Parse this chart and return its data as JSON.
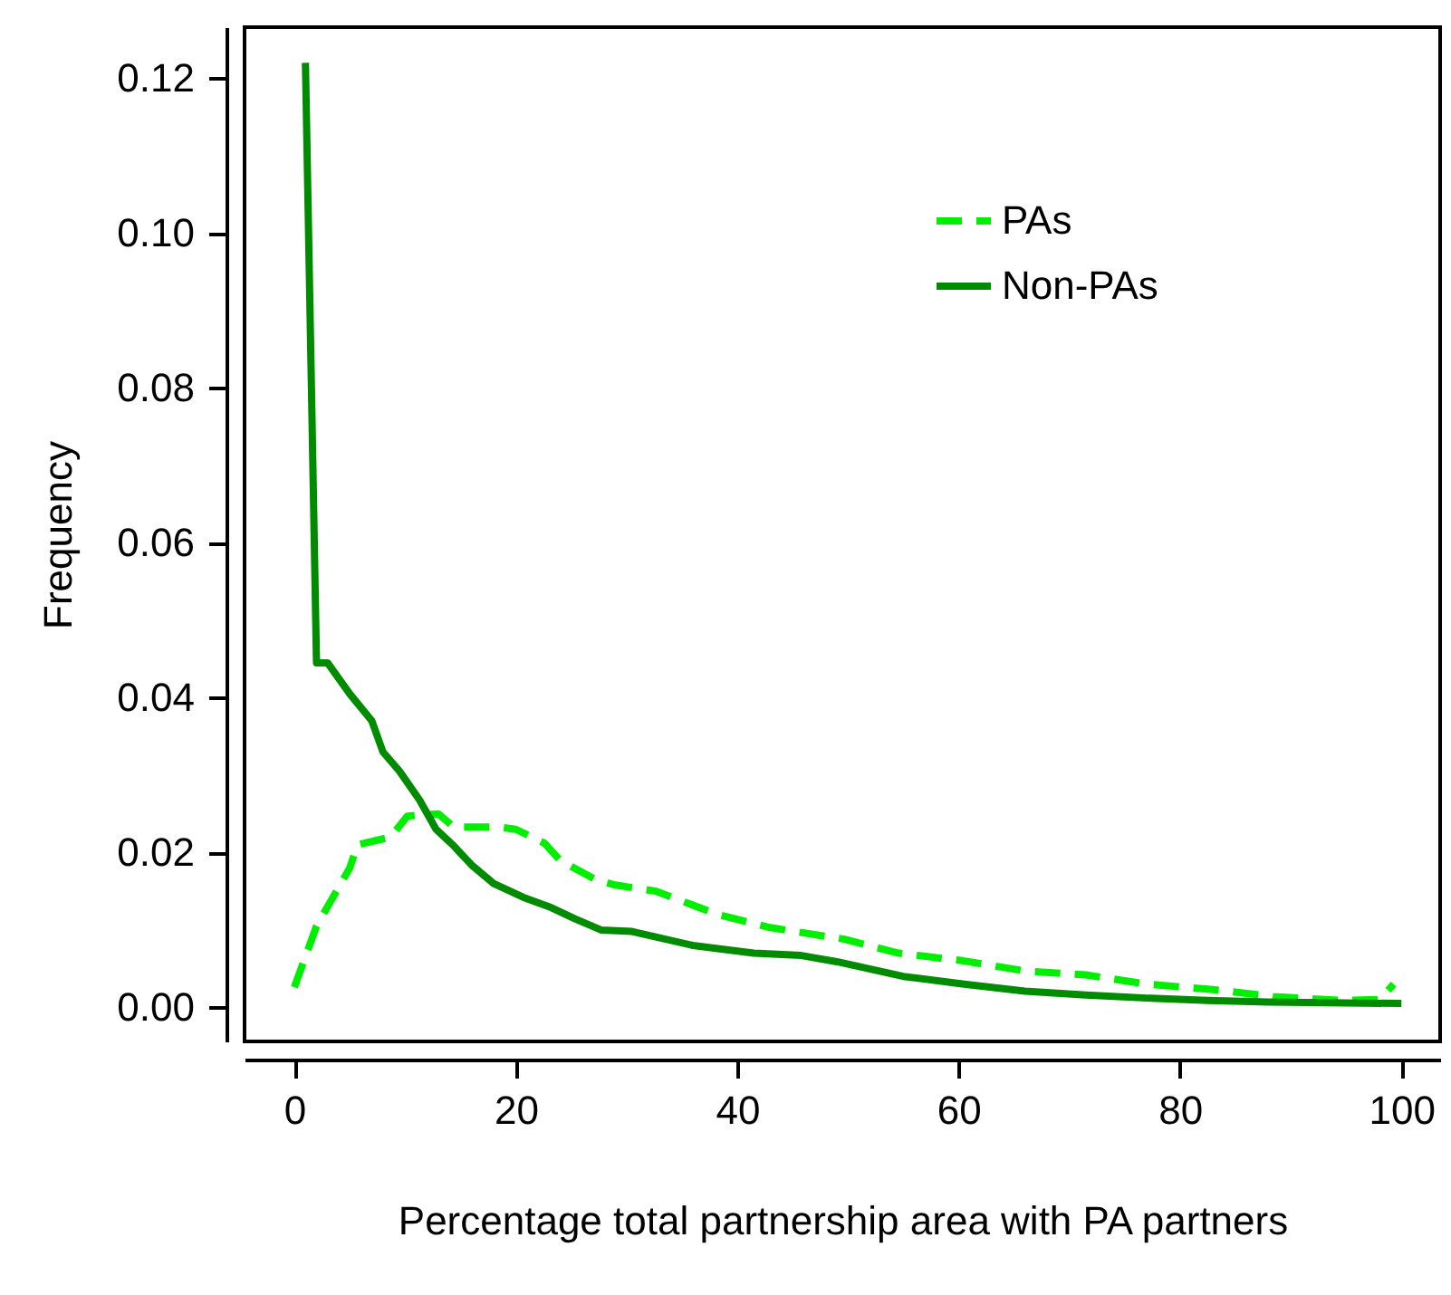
{
  "chart_data": {
    "type": "line",
    "xlabel": "Percentage total partnership area with PA partners",
    "ylabel": "Frequency",
    "xlim": [
      -4.5,
      103.5
    ],
    "ylim": [
      -0.0044,
      0.1266
    ],
    "xticks": [
      0,
      20,
      40,
      60,
      80,
      100
    ],
    "yticks": [
      {
        "value": 0,
        "label": "0.00"
      },
      0.02,
      0.04,
      0.06,
      0.08,
      {
        "value": 0.1,
        "label": "0.10"
      },
      0.12
    ],
    "legend": "top right",
    "grid": false,
    "series": [
      {
        "name": "PAs",
        "color": "#00ee00",
        "line_style": "dashed",
        "x": [
          0,
          2,
          5,
          5.7,
          8.7,
          10.2,
          13,
          14.4,
          18.4,
          20,
          22.6,
          24,
          27.2,
          29,
          32.7,
          38.2,
          43,
          49.7,
          54.6,
          60.5,
          66,
          71.5,
          77,
          83,
          88.4,
          94.5,
          98,
          99.3
        ],
        "values": [
          0.0026,
          0.0105,
          0.018,
          0.021,
          0.022,
          0.0247,
          0.025,
          0.0233,
          0.0233,
          0.023,
          0.0212,
          0.019,
          0.0165,
          0.0158,
          0.015,
          0.012,
          0.0103,
          0.0088,
          0.007,
          0.006,
          0.0047,
          0.0042,
          0.003,
          0.0023,
          0.0014,
          0.0009,
          0.001,
          0.003
        ]
      },
      {
        "name": "Non-PAs",
        "color": "#008b00",
        "line_style": "solid",
        "x": [
          1,
          2,
          3,
          5,
          7,
          8,
          9.5,
          11.3,
          12.8,
          14.3,
          16,
          18,
          20.7,
          23,
          25.4,
          27.7,
          30.5,
          36,
          41.5,
          45.8,
          49,
          55,
          60.5,
          66,
          71.5,
          77,
          82.5,
          88,
          93.3,
          100
        ],
        "values": [
          0.122,
          0.0445,
          0.0445,
          0.0405,
          0.037,
          0.033,
          0.0305,
          0.0268,
          0.023,
          0.021,
          0.0184,
          0.016,
          0.0142,
          0.013,
          0.0114,
          0.01,
          0.0098,
          0.008,
          0.007,
          0.0067,
          0.0059,
          0.004,
          0.003,
          0.0021,
          0.0016,
          0.0012,
          0.0009,
          0.0007,
          0.0006,
          0.0005
        ]
      }
    ]
  }
}
